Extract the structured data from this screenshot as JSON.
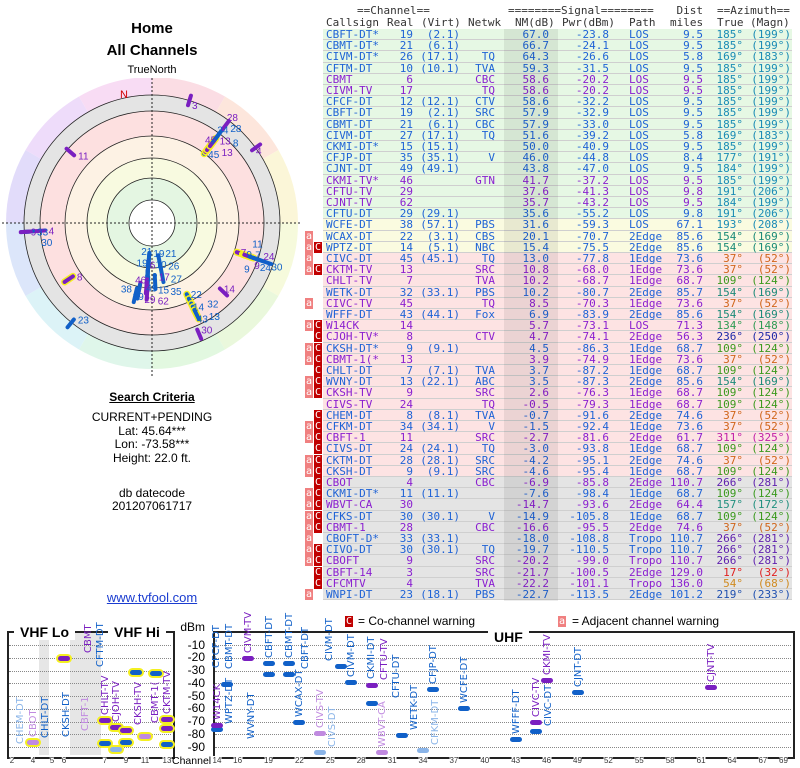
{
  "left": {
    "title": "Home",
    "subtitle": "All Channels",
    "north_label": "TrueNorth",
    "n_marker": "N",
    "criteria_title": "Search Criteria",
    "mode": "CURRENT+PENDING",
    "lat": "Lat: 45.64***",
    "lon": "Lon: -73.58***",
    "height": "Height: 22.0 ft.",
    "datecode_label": "db datecode",
    "datecode": "201207061717",
    "link": "www.tvfool.com"
  },
  "table": {
    "group_headers": {
      "channel": "==Channel==",
      "signal": "========Signal========",
      "dist": "Dist",
      "azimuth": "==Azimuth=="
    },
    "headers": {
      "callsign": "Callsign",
      "real": "Real",
      "virt": "(Virt)",
      "netwk": "Netwk",
      "nm": "NM(dB)",
      "pwr": "Pwr(dBm)",
      "path": "Path",
      "dist": "miles",
      "az_true": "True",
      "az_magn": "(Magn)"
    },
    "zone_colors": {
      "green": "#e6f8e4",
      "yellow": "#fafbe0",
      "pink": "#fde3e3",
      "gray": "#e4e4e4"
    },
    "type_colors": {
      "digital": "#1f63d6",
      "analog": "#8a1fd0"
    },
    "azimuth_colors": {
      "185": "#1a8bb5",
      "184": "#1a8bb5",
      "191": "#1a8bb5",
      "193": "#1a8bb5",
      "177": "#1a8bb5",
      "169": "#1a8bb5",
      "154": "#1a8a78",
      "37": "#d0651a",
      "109": "#3b9a1e",
      "134": "#2e9a52",
      "236": "#1f2aa8",
      "311": "#c020a8",
      "266": "#5e1fae",
      "157": "#1f8f7e",
      "17": "#e01f1f",
      "54": "#d08a1f",
      "219": "#1f50b0"
    },
    "rows": [
      {
        "flags": "",
        "call": "CBFT-DT*",
        "real": "19",
        "virt": "(2.1)",
        "net": "",
        "nm": "67.0",
        "pwr": "-23.8",
        "path": "LOS",
        "dist": "9.5",
        "az": "185°",
        "mag": "(199°)",
        "type": "digital",
        "zone": "green"
      },
      {
        "flags": "",
        "call": "CBMT-DT*",
        "real": "21",
        "virt": "(6.1)",
        "net": "",
        "nm": "66.7",
        "pwr": "-24.1",
        "path": "LOS",
        "dist": "9.5",
        "az": "185°",
        "mag": "(199°)",
        "type": "digital",
        "zone": "green"
      },
      {
        "flags": "",
        "call": "CIVM-DT*",
        "real": "26",
        "virt": "(17.1)",
        "net": "TQ",
        "nm": "64.3",
        "pwr": "-26.6",
        "path": "LOS",
        "dist": "5.8",
        "az": "169°",
        "mag": "(183°)",
        "type": "digital",
        "zone": "green"
      },
      {
        "flags": "",
        "call": "CFTM-DT",
        "real": "10",
        "virt": "(10.1)",
        "net": "TVA",
        "nm": "59.3",
        "pwr": "-31.5",
        "path": "LOS",
        "dist": "9.5",
        "az": "185°",
        "mag": "(199°)",
        "type": "digital",
        "zone": "green"
      },
      {
        "flags": "",
        "call": "CBMT",
        "real": "6",
        "virt": "",
        "net": "CBC",
        "nm": "58.6",
        "pwr": "-20.2",
        "path": "LOS",
        "dist": "9.5",
        "az": "185°",
        "mag": "(199°)",
        "type": "analog",
        "zone": "green"
      },
      {
        "flags": "",
        "call": "CIVM-TV",
        "real": "17",
        "virt": "",
        "net": "TQ",
        "nm": "58.6",
        "pwr": "-20.2",
        "path": "LOS",
        "dist": "9.5",
        "az": "185°",
        "mag": "(199°)",
        "type": "analog",
        "zone": "green"
      },
      {
        "flags": "",
        "call": "CFCF-DT",
        "real": "12",
        "virt": "(12.1)",
        "net": "CTV",
        "nm": "58.6",
        "pwr": "-32.2",
        "path": "LOS",
        "dist": "9.5",
        "az": "185°",
        "mag": "(199°)",
        "type": "digital",
        "zone": "green"
      },
      {
        "flags": "",
        "call": "CBFT-DT",
        "real": "19",
        "virt": "(2.1)",
        "net": "SRC",
        "nm": "57.9",
        "pwr": "-32.9",
        "path": "LOS",
        "dist": "9.5",
        "az": "185°",
        "mag": "(199°)",
        "type": "digital",
        "zone": "green"
      },
      {
        "flags": "",
        "call": "CBMT-DT",
        "real": "21",
        "virt": "(6.1)",
        "net": "CBC",
        "nm": "57.9",
        "pwr": "-33.0",
        "path": "LOS",
        "dist": "9.5",
        "az": "185°",
        "mag": "(199°)",
        "type": "digital",
        "zone": "green"
      },
      {
        "flags": "",
        "call": "CIVM-DT",
        "real": "27",
        "virt": "(17.1)",
        "net": "TQ",
        "nm": "51.6",
        "pwr": "-39.2",
        "path": "LOS",
        "dist": "5.8",
        "az": "169°",
        "mag": "(183°)",
        "type": "digital",
        "zone": "green"
      },
      {
        "flags": "",
        "call": "CKMI-DT*",
        "real": "15",
        "virt": "(15.1)",
        "net": "",
        "nm": "50.0",
        "pwr": "-40.9",
        "path": "LOS",
        "dist": "9.5",
        "az": "185°",
        "mag": "(199°)",
        "type": "digital",
        "zone": "green"
      },
      {
        "flags": "",
        "call": "CFJP-DT",
        "real": "35",
        "virt": "(35.1)",
        "net": "V",
        "nm": "46.0",
        "pwr": "-44.8",
        "path": "LOS",
        "dist": "8.4",
        "az": "177°",
        "mag": "(191°)",
        "type": "digital",
        "zone": "green"
      },
      {
        "flags": "",
        "call": "CJNT-DT",
        "real": "49",
        "virt": "(49.1)",
        "net": "",
        "nm": "43.8",
        "pwr": "-47.0",
        "path": "LOS",
        "dist": "9.5",
        "az": "184°",
        "mag": "(199°)",
        "type": "digital",
        "zone": "green"
      },
      {
        "flags": "",
        "call": "CKMI-TV*",
        "real": "46",
        "virt": "",
        "net": "GTN",
        "nm": "41.7",
        "pwr": "-37.2",
        "path": "LOS",
        "dist": "9.5",
        "az": "185°",
        "mag": "(199°)",
        "type": "analog",
        "zone": "green"
      },
      {
        "flags": "",
        "call": "CFTU-TV",
        "real": "29",
        "virt": "",
        "net": "",
        "nm": "37.6",
        "pwr": "-41.3",
        "path": "LOS",
        "dist": "9.8",
        "az": "191°",
        "mag": "(206°)",
        "type": "analog",
        "zone": "green"
      },
      {
        "flags": "",
        "call": "CJNT-TV",
        "real": "62",
        "virt": "",
        "net": "",
        "nm": "35.7",
        "pwr": "-43.2",
        "path": "LOS",
        "dist": "9.5",
        "az": "184°",
        "mag": "(199°)",
        "type": "analog",
        "zone": "green"
      },
      {
        "flags": "",
        "call": "CFTU-DT",
        "real": "29",
        "virt": "(29.1)",
        "net": "",
        "nm": "35.6",
        "pwr": "-55.2",
        "path": "LOS",
        "dist": "9.8",
        "az": "191°",
        "mag": "(206°)",
        "type": "digital",
        "zone": "green"
      },
      {
        "flags": "",
        "call": "WCFE-DT",
        "real": "38",
        "virt": "(57.1)",
        "net": "PBS",
        "nm": "31.6",
        "pwr": "-59.3",
        "path": "LOS",
        "dist": "67.1",
        "az": "193°",
        "mag": "(208°)",
        "type": "digital",
        "zone": "yellow"
      },
      {
        "flags": "a",
        "call": "WCAX-DT",
        "real": "22",
        "virt": "(3.1)",
        "net": "CBS",
        "nm": "20.1",
        "pwr": "-70.7",
        "path": "2Edge",
        "dist": "85.6",
        "az": "154°",
        "mag": "(169°)",
        "type": "digital",
        "zone": "yellow"
      },
      {
        "flags": "ac",
        "call": "WPTZ-DT",
        "real": "14",
        "virt": "(5.1)",
        "net": "NBC",
        "nm": "15.4",
        "pwr": "-75.5",
        "path": "2Edge",
        "dist": "85.6",
        "az": "154°",
        "mag": "(169°)",
        "type": "digital",
        "zone": "yellow"
      },
      {
        "flags": "a",
        "call": "CIVC-DT",
        "real": "45",
        "virt": "(45.1)",
        "net": "TQ",
        "nm": "13.0",
        "pwr": "-77.8",
        "path": "1Edge",
        "dist": "73.6",
        "az": "37°",
        "mag": "(52°)",
        "type": "digital",
        "zone": "pink"
      },
      {
        "flags": "ac",
        "call": "CKTM-TV",
        "real": "13",
        "virt": "",
        "net": "SRC",
        "nm": "10.8",
        "pwr": "-68.0",
        "path": "1Edge",
        "dist": "73.6",
        "az": "37°",
        "mag": "(52°)",
        "type": "analog",
        "zone": "pink"
      },
      {
        "flags": "",
        "call": "CHLT-TV",
        "real": "7",
        "virt": "",
        "net": "TVA",
        "nm": "10.2",
        "pwr": "-68.7",
        "path": "1Edge",
        "dist": "68.7",
        "az": "109°",
        "mag": "(124°)",
        "type": "analog",
        "zone": "pink"
      },
      {
        "flags": "",
        "call": "WETK-DT",
        "real": "32",
        "virt": "(33.1)",
        "net": "PBS",
        "nm": "10.2",
        "pwr": "-80.7",
        "path": "2Edge",
        "dist": "85.7",
        "az": "154°",
        "mag": "(169°)",
        "type": "digital",
        "zone": "pink"
      },
      {
        "flags": "a",
        "call": "CIVC-TV",
        "real": "45",
        "virt": "",
        "net": "TQ",
        "nm": "8.5",
        "pwr": "-70.3",
        "path": "1Edge",
        "dist": "73.6",
        "az": "37°",
        "mag": "(52°)",
        "type": "analog",
        "zone": "pink"
      },
      {
        "flags": "",
        "call": "WFFF-DT",
        "real": "43",
        "virt": "(44.1)",
        "net": "Fox",
        "nm": "6.9",
        "pwr": "-83.9",
        "path": "2Edge",
        "dist": "85.6",
        "az": "154°",
        "mag": "(169°)",
        "type": "digital",
        "zone": "pink"
      },
      {
        "flags": "ac",
        "call": "W14CK",
        "real": "14",
        "virt": "",
        "net": "",
        "nm": "5.7",
        "pwr": "-73.1",
        "path": "LOS",
        "dist": "71.3",
        "az": "134°",
        "mag": "(148°)",
        "type": "analog",
        "zone": "pink"
      },
      {
        "flags": "c",
        "call": "CJOH-TV*",
        "real": "8",
        "virt": "",
        "net": "CTV",
        "nm": "4.7",
        "pwr": "-74.1",
        "path": "2Edge",
        "dist": "56.3",
        "az": "236°",
        "mag": "(250°)",
        "type": "analog",
        "zone": "pink"
      },
      {
        "flags": "ac",
        "call": "CKSH-DT*",
        "real": "9",
        "virt": "(9.1)",
        "net": "",
        "nm": "4.5",
        "pwr": "-86.3",
        "path": "1Edge",
        "dist": "68.7",
        "az": "109°",
        "mag": "(124°)",
        "type": "digital",
        "zone": "pink"
      },
      {
        "flags": "ac",
        "call": "CBMT-1(*",
        "real": "13",
        "virt": "",
        "net": "",
        "nm": "3.9",
        "pwr": "-74.9",
        "path": "1Edge",
        "dist": "73.6",
        "az": "37°",
        "mag": "(52°)",
        "type": "analog",
        "zone": "pink"
      },
      {
        "flags": "c",
        "call": "CHLT-DT",
        "real": "7",
        "virt": "(7.1)",
        "net": "TVA",
        "nm": "3.7",
        "pwr": "-87.2",
        "path": "1Edge",
        "dist": "68.7",
        "az": "109°",
        "mag": "(124°)",
        "type": "digital",
        "zone": "pink"
      },
      {
        "flags": "ac",
        "call": "WVNY-DT",
        "real": "13",
        "virt": "(22.1)",
        "net": "ABC",
        "nm": "3.5",
        "pwr": "-87.3",
        "path": "2Edge",
        "dist": "85.6",
        "az": "154°",
        "mag": "(169°)",
        "type": "digital",
        "zone": "pink"
      },
      {
        "flags": "ac",
        "call": "CKSH-TV",
        "real": "9",
        "virt": "",
        "net": "SRC",
        "nm": "2.6",
        "pwr": "-76.3",
        "path": "1Edge",
        "dist": "68.7",
        "az": "109°",
        "mag": "(124°)",
        "type": "analog",
        "zone": "pink"
      },
      {
        "flags": "",
        "call": "CIVS-TV",
        "real": "24",
        "virt": "",
        "net": "TQ",
        "nm": "-0.5",
        "pwr": "-79.3",
        "path": "1Edge",
        "dist": "68.7",
        "az": "109°",
        "mag": "(124°)",
        "type": "analog",
        "zone": "pink"
      },
      {
        "flags": "c",
        "call": "CHEM-DT",
        "real": "8",
        "virt": "(8.1)",
        "net": "TVA",
        "nm": "-0.7",
        "pwr": "-91.6",
        "path": "2Edge",
        "dist": "74.6",
        "az": "37°",
        "mag": "(52°)",
        "type": "digital",
        "zone": "pink"
      },
      {
        "flags": "ac",
        "call": "CFKM-DT",
        "real": "34",
        "virt": "(34.1)",
        "net": "V",
        "nm": "-1.5",
        "pwr": "-92.4",
        "path": "1Edge",
        "dist": "73.6",
        "az": "37°",
        "mag": "(52°)",
        "type": "digital",
        "zone": "pink"
      },
      {
        "flags": "ac",
        "call": "CBFT-1",
        "real": "11",
        "virt": "",
        "net": "SRC",
        "nm": "-2.7",
        "pwr": "-81.6",
        "path": "2Edge",
        "dist": "61.7",
        "az": "311°",
        "mag": "(325°)",
        "type": "analog",
        "zone": "pink"
      },
      {
        "flags": "c",
        "call": "CIVS-DT",
        "real": "24",
        "virt": "(24.1)",
        "net": "TQ",
        "nm": "-3.0",
        "pwr": "-93.8",
        "path": "1Edge",
        "dist": "68.7",
        "az": "109°",
        "mag": "(124°)",
        "type": "digital",
        "zone": "pink"
      },
      {
        "flags": "ac",
        "call": "CKTM-DT",
        "real": "28",
        "virt": "(28.1)",
        "net": "SRC",
        "nm": "-4.2",
        "pwr": "-95.1",
        "path": "2Edge",
        "dist": "74.6",
        "az": "37°",
        "mag": "(52°)",
        "type": "digital",
        "zone": "pink"
      },
      {
        "flags": "ac",
        "call": "CKSH-DT",
        "real": "9",
        "virt": "(9.1)",
        "net": "SRC",
        "nm": "-4.6",
        "pwr": "-95.4",
        "path": "1Edge",
        "dist": "68.7",
        "az": "109°",
        "mag": "(124°)",
        "type": "digital",
        "zone": "pink"
      },
      {
        "flags": "c",
        "call": "CBOT",
        "real": "4",
        "virt": "",
        "net": "CBC",
        "nm": "-6.9",
        "pwr": "-85.8",
        "path": "2Edge",
        "dist": "110.7",
        "az": "266°",
        "mag": "(281°)",
        "type": "analog",
        "zone": "gray"
      },
      {
        "flags": "ac",
        "call": "CKMI-DT*",
        "real": "11",
        "virt": "(11.1)",
        "net": "",
        "nm": "-7.6",
        "pwr": "-98.4",
        "path": "1Edge",
        "dist": "68.7",
        "az": "109°",
        "mag": "(124°)",
        "type": "digital",
        "zone": "gray"
      },
      {
        "flags": "ac",
        "call": "WBVT-CA",
        "real": "30",
        "virt": "",
        "net": "",
        "nm": "-14.7",
        "pwr": "-93.6",
        "path": "2Edge",
        "dist": "64.4",
        "az": "157°",
        "mag": "(172°)",
        "type": "analog",
        "zone": "gray"
      },
      {
        "flags": "ac",
        "call": "CFKS-DT",
        "real": "30",
        "virt": "(30.1)",
        "net": "V",
        "nm": "-14.9",
        "pwr": "-105.8",
        "path": "1Edge",
        "dist": "68.7",
        "az": "109°",
        "mag": "(124°)",
        "type": "digital",
        "zone": "gray"
      },
      {
        "flags": "ac",
        "call": "CBMT-1",
        "real": "28",
        "virt": "",
        "net": "CBC",
        "nm": "-16.6",
        "pwr": "-95.5",
        "path": "2Edge",
        "dist": "74.6",
        "az": "37°",
        "mag": "(52°)",
        "type": "analog",
        "zone": "gray"
      },
      {
        "flags": "a",
        "call": "CBOFT-D*",
        "real": "33",
        "virt": "(33.1)",
        "net": "",
        "nm": "-18.0",
        "pwr": "-108.8",
        "path": "Tropo",
        "dist": "110.7",
        "az": "266°",
        "mag": "(281°)",
        "type": "digital",
        "zone": "gray"
      },
      {
        "flags": "ac",
        "call": "CIVO-DT",
        "real": "30",
        "virt": "(30.1)",
        "net": "TQ",
        "nm": "-19.7",
        "pwr": "-110.5",
        "path": "Tropo",
        "dist": "110.7",
        "az": "266°",
        "mag": "(281°)",
        "type": "digital",
        "zone": "gray"
      },
      {
        "flags": "ac",
        "call": "CBOFT",
        "real": "9",
        "virt": "",
        "net": "SRC",
        "nm": "-20.2",
        "pwr": "-99.0",
        "path": "Tropo",
        "dist": "110.7",
        "az": "266°",
        "mag": "(281°)",
        "type": "analog",
        "zone": "gray"
      },
      {
        "flags": "c",
        "call": "CBFT-14",
        "real": "3",
        "virt": "",
        "net": "SRC",
        "nm": "-21.7",
        "pwr": "-100.5",
        "path": "2Edge",
        "dist": "129.0",
        "az": "17°",
        "mag": "(32°)",
        "type": "analog",
        "zone": "gray"
      },
      {
        "flags": "c",
        "call": "CFCMTV",
        "real": "4",
        "virt": "",
        "net": "TVA",
        "nm": "-22.2",
        "pwr": "-101.1",
        "path": "Tropo",
        "dist": "136.0",
        "az": "54°",
        "mag": "(68°)",
        "type": "analog",
        "zone": "gray"
      },
      {
        "flags": "a",
        "call": "WNPI-DT",
        "real": "23",
        "virt": "(18.1)",
        "net": "PBS",
        "nm": "-22.7",
        "pwr": "-113.5",
        "path": "2Edge",
        "dist": "101.2",
        "az": "219°",
        "mag": "(233°)",
        "type": "digital",
        "zone": "gray"
      }
    ]
  },
  "spectrum": {
    "vhf_lo": "VHF Lo",
    "vhf_hi": "VHF Hi",
    "uhf": "UHF",
    "dbm_label": "dBm",
    "channel_label": "Channel",
    "dbm_ticks": [
      "-10",
      "-20",
      "-30",
      "-40",
      "-50",
      "-60",
      "-70",
      "-80",
      "-90"
    ],
    "vhf_channels": [
      "2",
      "4",
      "5",
      "6",
      "7",
      "9",
      "11",
      "13"
    ],
    "uhf_channels": [
      "14",
      "16",
      "19",
      "22",
      "25",
      "28",
      "31",
      "34",
      "37",
      "40",
      "43",
      "46",
      "49",
      "52",
      "55",
      "58",
      "61",
      "64",
      "67",
      "69"
    ],
    "co_badge": "C",
    "co_legend": "= Co-channel warning",
    "adj_badge": "a",
    "adj_legend": "= Adjacent channel warning",
    "colors": {
      "strong_digital": "#1060c8",
      "weak_digital": "#8ab4e8",
      "strong_analog": "#7a1fc0",
      "weak_analog": "#c08ae0",
      "highlight": "#f4f020"
    }
  }
}
